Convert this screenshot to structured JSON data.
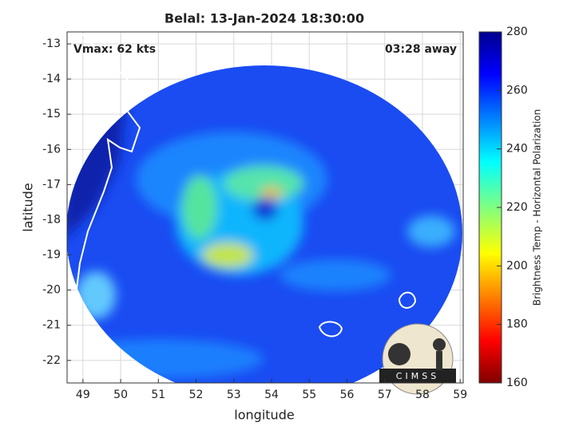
{
  "chart_data": {
    "type": "image",
    "title": "Belal: 13-Jan-2024 18:30:00",
    "annotations": [
      "Vmax: 62 kts",
      "03:28 away"
    ],
    "xlabel": "longitude",
    "ylabel": "latitude",
    "xlim": [
      48.58,
      59.08
    ],
    "ylim": [
      -22.64,
      -12.66
    ],
    "xticks": [
      49,
      50,
      51,
      52,
      53,
      54,
      55,
      56,
      57,
      58,
      59
    ],
    "yticks": [
      -22,
      -21,
      -20,
      -19,
      -18,
      -17,
      -16,
      -15,
      -14,
      -13
    ],
    "grid": true,
    "colorbar": {
      "label": "Brightness Temp - Horizontal Polarization",
      "lim": [
        160,
        280
      ],
      "ticks": [
        160,
        180,
        200,
        220,
        240,
        260,
        280
      ]
    },
    "logo": "CIMSS"
  }
}
